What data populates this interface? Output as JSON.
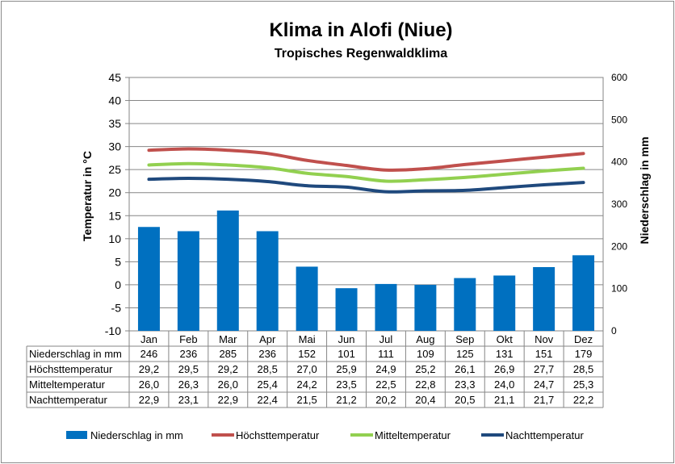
{
  "chart_data": {
    "type": "bar+line",
    "title": "Klima in Alofi (Niue)",
    "subtitle": "Tropisches Regenwaldklima",
    "ylabel_left": "Temperatur in °C",
    "ylabel_right": "Niederschlag in mm",
    "ylim_left": [
      -10,
      45
    ],
    "yticks_left": [
      -10,
      -5,
      0,
      5,
      10,
      15,
      20,
      25,
      30,
      35,
      40,
      45
    ],
    "ylim_right": [
      0,
      600
    ],
    "yticks_right": [
      0,
      100,
      200,
      300,
      400,
      500,
      600
    ],
    "grid": true,
    "legend_position": "bottom",
    "categories": [
      "Jan",
      "Feb",
      "Mar",
      "Apr",
      "Mai",
      "Jun",
      "Jul",
      "Aug",
      "Sep",
      "Okt",
      "Nov",
      "Dez"
    ],
    "series": [
      {
        "name": "Niederschlag in mm",
        "type": "bar",
        "axis": "right",
        "color": "#0070C0",
        "values": [
          246,
          236,
          285,
          236,
          152,
          101,
          111,
          109,
          125,
          131,
          151,
          179
        ],
        "labels": [
          "246",
          "236",
          "285",
          "236",
          "152",
          "101",
          "111",
          "109",
          "125",
          "131",
          "151",
          "179"
        ]
      },
      {
        "name": "Höchsttemperatur",
        "type": "line",
        "axis": "left",
        "color": "#C0504D",
        "values": [
          29.2,
          29.5,
          29.2,
          28.5,
          27.0,
          25.9,
          24.9,
          25.2,
          26.1,
          26.9,
          27.7,
          28.5
        ],
        "labels": [
          "29,2",
          "29,5",
          "29,2",
          "28,5",
          "27,0",
          "25,9",
          "24,9",
          "25,2",
          "26,1",
          "26,9",
          "27,7",
          "28,5"
        ]
      },
      {
        "name": "Mitteltemperatur",
        "type": "line",
        "axis": "left",
        "color": "#92D050",
        "values": [
          26.0,
          26.3,
          26.0,
          25.4,
          24.2,
          23.5,
          22.5,
          22.8,
          23.3,
          24.0,
          24.7,
          25.3
        ],
        "labels": [
          "26,0",
          "26,3",
          "26,0",
          "25,4",
          "24,2",
          "23,5",
          "22,5",
          "22,8",
          "23,3",
          "24,0",
          "24,7",
          "25,3"
        ]
      },
      {
        "name": "Nachttemperatur",
        "type": "line",
        "axis": "left",
        "color": "#1F497D",
        "values": [
          22.9,
          23.1,
          22.9,
          22.4,
          21.5,
          21.2,
          20.2,
          20.4,
          20.5,
          21.1,
          21.7,
          22.2
        ],
        "labels": [
          "22,9",
          "23,1",
          "22,9",
          "22,4",
          "21,5",
          "21,2",
          "20,2",
          "20,4",
          "20,5",
          "21,1",
          "21,7",
          "22,2"
        ]
      }
    ]
  }
}
